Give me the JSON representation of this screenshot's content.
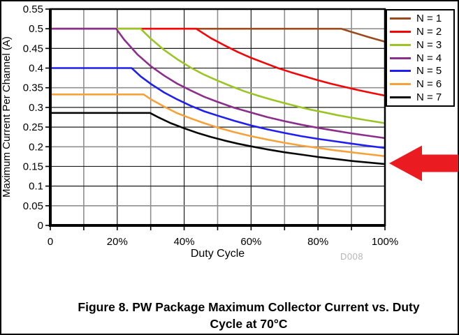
{
  "figure": {
    "caption_line1": "Figure 8. PW Package Maximum Collector Current vs. Duty",
    "caption_line2": "Cycle at 70°C",
    "watermark": "D008"
  },
  "chart_data": {
    "type": "line",
    "title": "",
    "xlabel": "Duty Cycle",
    "ylabel": "Maximum Current Per Channel (A)",
    "xlim": [
      0,
      100
    ],
    "ylim": [
      0,
      0.55
    ],
    "x_ticks": [
      0,
      10,
      20,
      30,
      40,
      50,
      60,
      70,
      80,
      90,
      100
    ],
    "x_tick_labels": [
      "0",
      "",
      "20%",
      "",
      "40%",
      "",
      "60%",
      "",
      "80%",
      "",
      "100%"
    ],
    "y_ticks": [
      0,
      0.05,
      0.1,
      0.15,
      0.2,
      0.25,
      0.3,
      0.35,
      0.4,
      0.45,
      0.5,
      0.55
    ],
    "y_tick_labels": [
      "0",
      "0.05",
      "0.1",
      "0.15",
      "0.2",
      "0.25",
      "0.3",
      "0.35",
      "0.4",
      "0.45",
      "0.5",
      "0.55"
    ],
    "grid": "on",
    "gray_x_gridlines": [
      10,
      30,
      50,
      70,
      90
    ],
    "gray_y_gridlines": [
      0.05,
      0.2,
      0.35,
      0.5
    ],
    "legend_position": "outside-right",
    "series": [
      {
        "name": "N = 1",
        "color": "#9b4a1d",
        "points": [
          [
            0,
            0.5
          ],
          [
            87,
            0.5
          ],
          [
            90,
            0.492
          ],
          [
            95,
            0.479
          ],
          [
            100,
            0.467
          ]
        ]
      },
      {
        "name": "N = 2",
        "color": "#f40606",
        "points": [
          [
            0,
            0.5
          ],
          [
            43.6,
            0.5
          ],
          [
            48,
            0.476
          ],
          [
            52,
            0.458
          ],
          [
            56,
            0.441
          ],
          [
            60,
            0.426
          ],
          [
            64,
            0.413
          ],
          [
            68,
            0.4
          ],
          [
            72,
            0.389
          ],
          [
            76,
            0.379
          ],
          [
            80,
            0.369
          ],
          [
            84,
            0.36
          ],
          [
            88,
            0.352
          ],
          [
            92,
            0.344
          ],
          [
            96,
            0.337
          ],
          [
            100,
            0.33
          ]
        ]
      },
      {
        "name": "N = 3",
        "color": "#9bc525",
        "points": [
          [
            0,
            0.5
          ],
          [
            27,
            0.5
          ],
          [
            30,
            0.475
          ],
          [
            34,
            0.446
          ],
          [
            38,
            0.422
          ],
          [
            42,
            0.401
          ],
          [
            46,
            0.383
          ],
          [
            50,
            0.368
          ],
          [
            54,
            0.354
          ],
          [
            58,
            0.341
          ],
          [
            62,
            0.33
          ],
          [
            66,
            0.32
          ],
          [
            70,
            0.311
          ],
          [
            74,
            0.302
          ],
          [
            78,
            0.294
          ],
          [
            82,
            0.287
          ],
          [
            86,
            0.28
          ],
          [
            90,
            0.274
          ],
          [
            94,
            0.268
          ],
          [
            100,
            0.26
          ]
        ]
      },
      {
        "name": "N = 4",
        "color": "#8b2e8c",
        "points": [
          [
            0,
            0.5
          ],
          [
            19.7,
            0.5
          ],
          [
            22,
            0.473
          ],
          [
            26,
            0.435
          ],
          [
            30,
            0.405
          ],
          [
            34,
            0.381
          ],
          [
            38,
            0.36
          ],
          [
            42,
            0.343
          ],
          [
            46,
            0.327
          ],
          [
            50,
            0.314
          ],
          [
            55,
            0.299
          ],
          [
            60,
            0.287
          ],
          [
            65,
            0.275
          ],
          [
            70,
            0.265
          ],
          [
            75,
            0.256
          ],
          [
            80,
            0.248
          ],
          [
            85,
            0.241
          ],
          [
            90,
            0.234
          ],
          [
            95,
            0.228
          ],
          [
            100,
            0.222
          ]
        ]
      },
      {
        "name": "N = 5",
        "color": "#1f1ff2",
        "points": [
          [
            0,
            0.4
          ],
          [
            24.3,
            0.4
          ],
          [
            27,
            0.379
          ],
          [
            30,
            0.36
          ],
          [
            34,
            0.338
          ],
          [
            38,
            0.32
          ],
          [
            42,
            0.304
          ],
          [
            46,
            0.29
          ],
          [
            50,
            0.279
          ],
          [
            55,
            0.266
          ],
          [
            60,
            0.254
          ],
          [
            65,
            0.244
          ],
          [
            70,
            0.235
          ],
          [
            75,
            0.227
          ],
          [
            80,
            0.22
          ],
          [
            85,
            0.214
          ],
          [
            90,
            0.208
          ],
          [
            95,
            0.202
          ],
          [
            100,
            0.197
          ]
        ]
      },
      {
        "name": "N = 6",
        "color": "#f7a239",
        "points": [
          [
            0,
            0.333
          ],
          [
            27.9,
            0.333
          ],
          [
            30,
            0.321
          ],
          [
            34,
            0.302
          ],
          [
            38,
            0.285
          ],
          [
            42,
            0.272
          ],
          [
            46,
            0.26
          ],
          [
            50,
            0.249
          ],
          [
            55,
            0.237
          ],
          [
            60,
            0.227
          ],
          [
            65,
            0.218
          ],
          [
            70,
            0.21
          ],
          [
            75,
            0.203
          ],
          [
            80,
            0.197
          ],
          [
            85,
            0.191
          ],
          [
            90,
            0.186
          ],
          [
            95,
            0.181
          ],
          [
            100,
            0.176
          ]
        ]
      },
      {
        "name": "N = 7",
        "color": "#070707",
        "points": [
          [
            0,
            0.286
          ],
          [
            29.8,
            0.286
          ],
          [
            32,
            0.276
          ],
          [
            36,
            0.26
          ],
          [
            40,
            0.247
          ],
          [
            44,
            0.235
          ],
          [
            48,
            0.225
          ],
          [
            52,
            0.216
          ],
          [
            56,
            0.208
          ],
          [
            60,
            0.201
          ],
          [
            65,
            0.193
          ],
          [
            70,
            0.186
          ],
          [
            75,
            0.18
          ],
          [
            80,
            0.174
          ],
          [
            85,
            0.169
          ],
          [
            90,
            0.164
          ],
          [
            95,
            0.16
          ],
          [
            100,
            0.156
          ]
        ]
      }
    ]
  },
  "annotation": {
    "red_arrow": {
      "shape": "left-pointing-block-arrow",
      "color": "#ea1c21"
    }
  },
  "colors": {
    "grid_dark": "#1c1c1c",
    "grid_gray": "#8f8f8f",
    "axis": "#000000",
    "background": "#ffffff",
    "watermark_text": "#b5b5b5"
  }
}
